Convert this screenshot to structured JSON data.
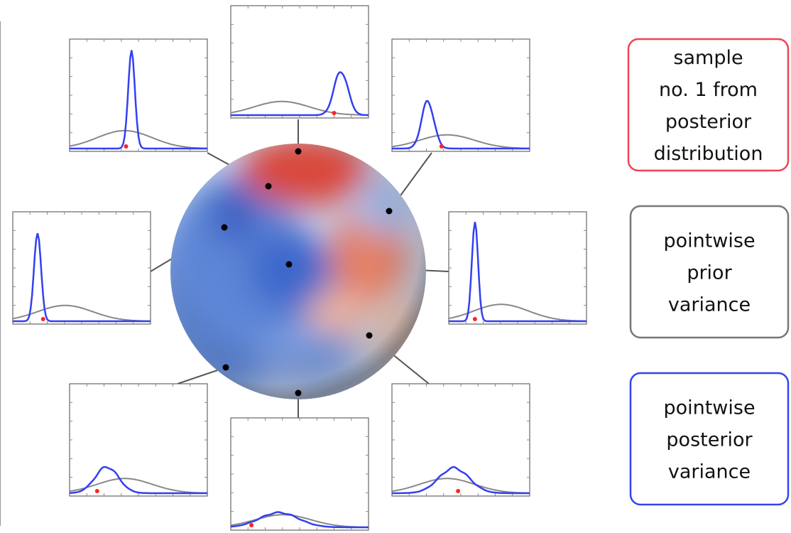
{
  "boxes": [
    {
      "lines": [
        "sample",
        "no. 1 from",
        "posterior",
        "distribution"
      ]
    },
    {
      "lines": [
        "pointwise",
        "prior",
        "variance"
      ]
    },
    {
      "lines": [
        "pointwise",
        "posterior",
        "variance"
      ]
    }
  ]
}
